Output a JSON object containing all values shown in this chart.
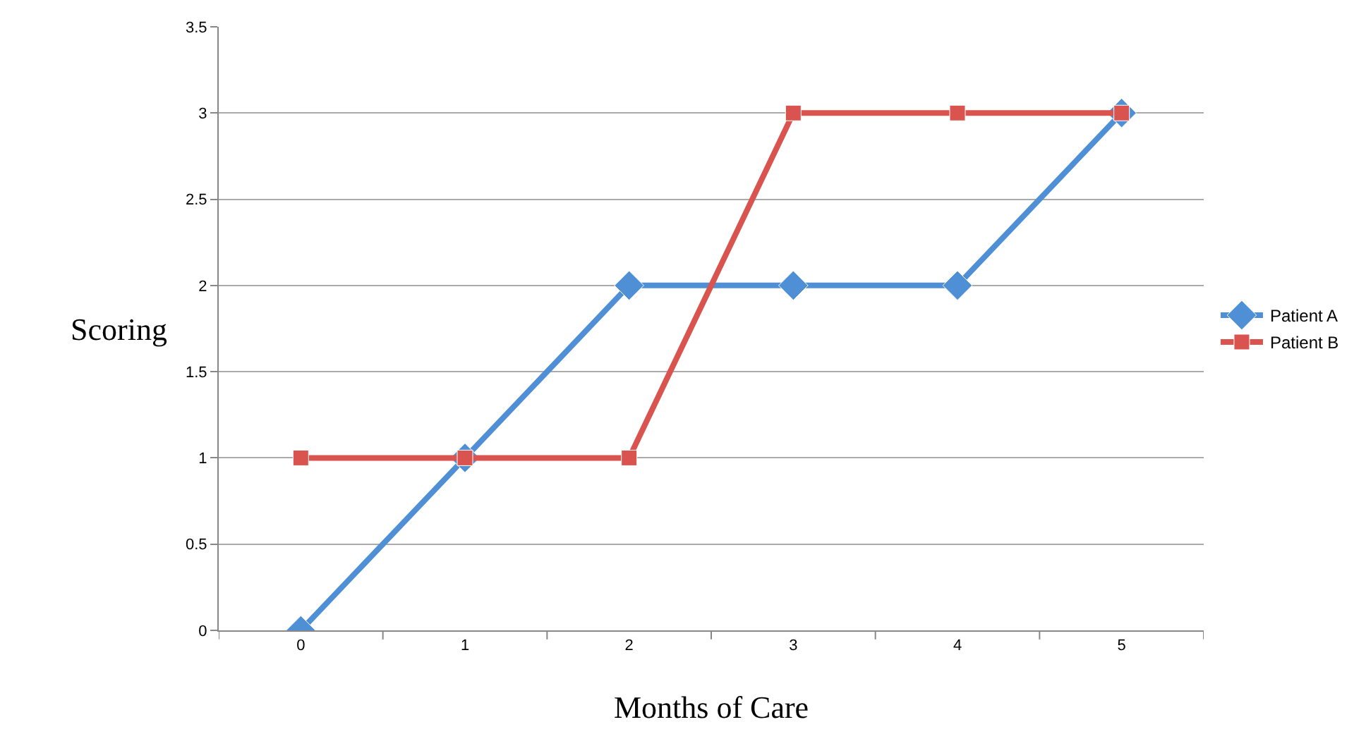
{
  "chart_data": {
    "type": "line",
    "xlabel": "Months of Care",
    "ylabel": "Scoring",
    "categories": [
      "0",
      "1",
      "2",
      "3",
      "4",
      "5"
    ],
    "series": [
      {
        "name": "Patient A",
        "color": "#4f8fd6",
        "marker": "diamond",
        "values": [
          0,
          1,
          2,
          2,
          2,
          3
        ]
      },
      {
        "name": "Patient B",
        "color": "#d9534f",
        "marker": "square",
        "values": [
          1,
          1,
          1,
          3,
          3,
          3
        ]
      }
    ],
    "ylim": [
      0,
      3.5
    ],
    "yticks": [
      0,
      0.5,
      1,
      1.5,
      2,
      2.5,
      3,
      3.5
    ],
    "grid": "y",
    "legend": "right",
    "line_style": "solid"
  }
}
